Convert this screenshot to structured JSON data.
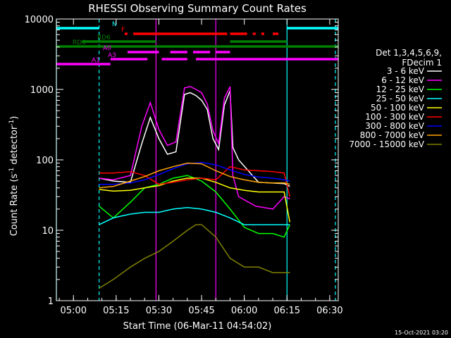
{
  "chart_data": {
    "type": "line",
    "title": "RHESSI Observing Summary Count Rates",
    "xlabel": "Start Time (06-Mar-11 04:54:02)",
    "ylabel_prefix": "Count Rate (s",
    "ylabel_sup": "-1",
    "ylabel_mid": " detector",
    "ylabel_suffix": ")",
    "y_scale": "log",
    "ylim": [
      1,
      10000
    ],
    "xlim_minutes": [
      "04:54",
      "06:33"
    ],
    "x_ticks": [
      "05:00",
      "05:15",
      "05:30",
      "05:45",
      "06:00",
      "06:15",
      "06:30"
    ],
    "y_ticks": [
      "1",
      "10",
      "100",
      "1000",
      "10000"
    ],
    "grid": false,
    "legend_header": [
      "Det 1,3,4,5,6,9,",
      "FDecim 1"
    ],
    "legend_position": "right",
    "timestamp": "15-Oct-2021 03:20",
    "series": [
      {
        "name": "3 - 6 keV",
        "color": "#ffffff",
        "points": [
          [
            "05:09",
            55
          ],
          [
            "05:14",
            50
          ],
          [
            "05:20",
            48
          ],
          [
            "05:24",
            170
          ],
          [
            "05:27",
            400
          ],
          [
            "05:30",
            200
          ],
          [
            "05:33",
            120
          ],
          [
            "05:36",
            130
          ],
          [
            "05:39",
            850
          ],
          [
            "05:41",
            900
          ],
          [
            "05:43",
            820
          ],
          [
            "05:45",
            700
          ],
          [
            "05:47",
            520
          ],
          [
            "05:49",
            200
          ],
          [
            "05:51",
            140
          ],
          [
            "05:53",
            600
          ],
          [
            "05:55",
            960
          ],
          [
            "05:56",
            150
          ],
          [
            "05:58",
            100
          ],
          [
            "06:05",
            48
          ],
          [
            "06:14",
            46
          ],
          [
            "06:16",
            42
          ]
        ]
      },
      {
        "name": "6 - 12 keV",
        "color": "#ff00ff",
        "points": [
          [
            "05:09",
            55
          ],
          [
            "05:14",
            52
          ],
          [
            "05:20",
            60
          ],
          [
            "05:24",
            300
          ],
          [
            "05:27",
            650
          ],
          [
            "05:30",
            270
          ],
          [
            "05:33",
            160
          ],
          [
            "05:36",
            180
          ],
          [
            "05:39",
            1050
          ],
          [
            "05:41",
            1100
          ],
          [
            "05:43",
            1000
          ],
          [
            "05:45",
            900
          ],
          [
            "05:47",
            620
          ],
          [
            "05:49",
            260
          ],
          [
            "05:51",
            170
          ],
          [
            "05:53",
            750
          ],
          [
            "05:55",
            1100
          ],
          [
            "05:56",
            60
          ],
          [
            "05:58",
            30
          ],
          [
            "06:04",
            22
          ],
          [
            "06:10",
            20
          ],
          [
            "06:14",
            30
          ],
          [
            "06:16",
            28
          ]
        ]
      },
      {
        "name": "12 - 25 keV",
        "color": "#00ff00",
        "points": [
          [
            "05:09",
            22
          ],
          [
            "05:14",
            15
          ],
          [
            "05:20",
            25
          ],
          [
            "05:25",
            40
          ],
          [
            "05:30",
            45
          ],
          [
            "05:35",
            55
          ],
          [
            "05:40",
            60
          ],
          [
            "05:45",
            50
          ],
          [
            "05:50",
            35
          ],
          [
            "05:55",
            20
          ],
          [
            "06:00",
            11
          ],
          [
            "06:05",
            9
          ],
          [
            "06:10",
            9
          ],
          [
            "06:14",
            8
          ],
          [
            "06:16",
            12
          ]
        ]
      },
      {
        "name": "25 - 50 keV",
        "color": "#00ffff",
        "points": [
          [
            "05:09",
            12
          ],
          [
            "05:14",
            15
          ],
          [
            "05:20",
            17
          ],
          [
            "05:25",
            18
          ],
          [
            "05:30",
            18
          ],
          [
            "05:35",
            20
          ],
          [
            "05:40",
            21
          ],
          [
            "05:45",
            20
          ],
          [
            "05:50",
            18
          ],
          [
            "05:55",
            15
          ],
          [
            "06:00",
            12
          ],
          [
            "06:05",
            12
          ],
          [
            "06:10",
            12
          ],
          [
            "06:14",
            12
          ],
          [
            "06:16",
            12
          ]
        ]
      },
      {
        "name": "50 - 100 keV",
        "color": "#ffff00",
        "points": [
          [
            "05:09",
            38
          ],
          [
            "05:14",
            36
          ],
          [
            "05:20",
            37
          ],
          [
            "05:25",
            40
          ],
          [
            "05:30",
            43
          ],
          [
            "05:35",
            50
          ],
          [
            "05:40",
            55
          ],
          [
            "05:45",
            55
          ],
          [
            "05:50",
            48
          ],
          [
            "05:55",
            40
          ],
          [
            "06:00",
            37
          ],
          [
            "06:05",
            35
          ],
          [
            "06:10",
            35
          ],
          [
            "06:14",
            35
          ],
          [
            "06:16",
            13
          ]
        ]
      },
      {
        "name": "100 - 300 keV",
        "color": "#ff0000",
        "points": [
          [
            "05:09",
            65
          ],
          [
            "05:14",
            65
          ],
          [
            "05:20",
            68
          ],
          [
            "05:25",
            60
          ],
          [
            "05:30",
            45
          ],
          [
            "05:35",
            48
          ],
          [
            "05:40",
            52
          ],
          [
            "05:45",
            55
          ],
          [
            "05:50",
            52
          ],
          [
            "05:55",
            80
          ],
          [
            "06:00",
            72
          ],
          [
            "06:05",
            70
          ],
          [
            "06:10",
            68
          ],
          [
            "06:14",
            65
          ],
          [
            "06:16",
            30
          ]
        ]
      },
      {
        "name": "300 - 800 keV",
        "color": "#0000ff",
        "points": [
          [
            "05:09",
            45
          ],
          [
            "05:14",
            45
          ],
          [
            "05:20",
            47
          ],
          [
            "05:25",
            52
          ],
          [
            "05:30",
            62
          ],
          [
            "05:35",
            75
          ],
          [
            "05:40",
            88
          ],
          [
            "05:45",
            92
          ],
          [
            "05:50",
            85
          ],
          [
            "05:55",
            72
          ],
          [
            "06:00",
            62
          ],
          [
            "06:05",
            57
          ],
          [
            "06:10",
            55
          ],
          [
            "06:14",
            52
          ],
          [
            "06:16",
            50
          ]
        ]
      },
      {
        "name": "800 - 7000 keV",
        "color": "#ffa500",
        "points": [
          [
            "05:09",
            40
          ],
          [
            "05:14",
            42
          ],
          [
            "05:20",
            50
          ],
          [
            "05:25",
            58
          ],
          [
            "05:30",
            70
          ],
          [
            "05:35",
            80
          ],
          [
            "05:40",
            90
          ],
          [
            "05:45",
            88
          ],
          [
            "05:50",
            70
          ],
          [
            "05:55",
            58
          ],
          [
            "06:00",
            52
          ],
          [
            "06:05",
            48
          ],
          [
            "06:10",
            47
          ],
          [
            "06:14",
            47
          ],
          [
            "06:16",
            45
          ]
        ]
      },
      {
        "name": "7000 - 15000 keV",
        "color": "#808000",
        "points": [
          [
            "05:09",
            1.5
          ],
          [
            "05:14",
            2
          ],
          [
            "05:20",
            3
          ],
          [
            "05:25",
            4
          ],
          [
            "05:30",
            5
          ],
          [
            "05:35",
            7
          ],
          [
            "05:40",
            10
          ],
          [
            "05:43",
            12
          ],
          [
            "05:45",
            12
          ],
          [
            "05:50",
            8
          ],
          [
            "05:55",
            4
          ],
          [
            "06:00",
            3
          ],
          [
            "06:05",
            3
          ],
          [
            "06:10",
            2.5
          ],
          [
            "06:14",
            2.5
          ],
          [
            "06:16",
            2.5
          ]
        ]
      }
    ],
    "flags": [
      {
        "label": "N",
        "color": "#00ffff",
        "segments": [
          [
            "04:54",
            "05:09"
          ],
          [
            "06:15",
            "06:33"
          ]
        ]
      },
      {
        "label": "F",
        "color": "#ff0000",
        "segments": [
          [
            "05:18",
            "05:19"
          ],
          [
            "05:21",
            "05:54"
          ],
          [
            "05:55",
            "06:01"
          ],
          [
            "06:03",
            "06:04"
          ],
          [
            "06:06",
            "06:07"
          ],
          [
            "06:10",
            "06:12"
          ]
        ]
      },
      {
        "label": "RD0",
        "color": "#008000",
        "segments": [
          [
            "04:54",
            "06:33"
          ]
        ]
      },
      {
        "label": "RD6",
        "color": "#008000",
        "segments": [
          [
            "05:03",
            "05:29"
          ],
          [
            "05:55",
            "06:15"
          ]
        ]
      },
      {
        "label": "A0",
        "color": "#ff00ff",
        "segments": [
          [
            "05:19",
            "05:30"
          ],
          [
            "05:34",
            "05:40"
          ],
          [
            "05:42",
            "05:48"
          ],
          [
            "05:50",
            "05:55"
          ]
        ]
      },
      {
        "label": "A1",
        "color": "#ff00ff",
        "segments": [
          [
            "04:54",
            "05:13"
          ]
        ]
      },
      {
        "label": "A3",
        "color": "#ff00ff",
        "segments": [
          [
            "05:13",
            "05:26"
          ],
          [
            "05:31",
            "05:40"
          ],
          [
            "05:43",
            "06:33"
          ]
        ]
      }
    ],
    "vertical_markers": [
      {
        "time": "04:54",
        "color": "#00ffff",
        "style": "solid"
      },
      {
        "time": "05:09",
        "color": "#00ffff",
        "style": "dashed"
      },
      {
        "time": "06:15",
        "color": "#00ffff",
        "style": "solid"
      },
      {
        "time": "06:32",
        "color": "#00ffff",
        "style": "dashed"
      },
      {
        "time": "05:29",
        "color": "#ff00ff",
        "style": "solid"
      },
      {
        "time": "05:50",
        "color": "#ff00ff",
        "style": "solid"
      }
    ]
  }
}
